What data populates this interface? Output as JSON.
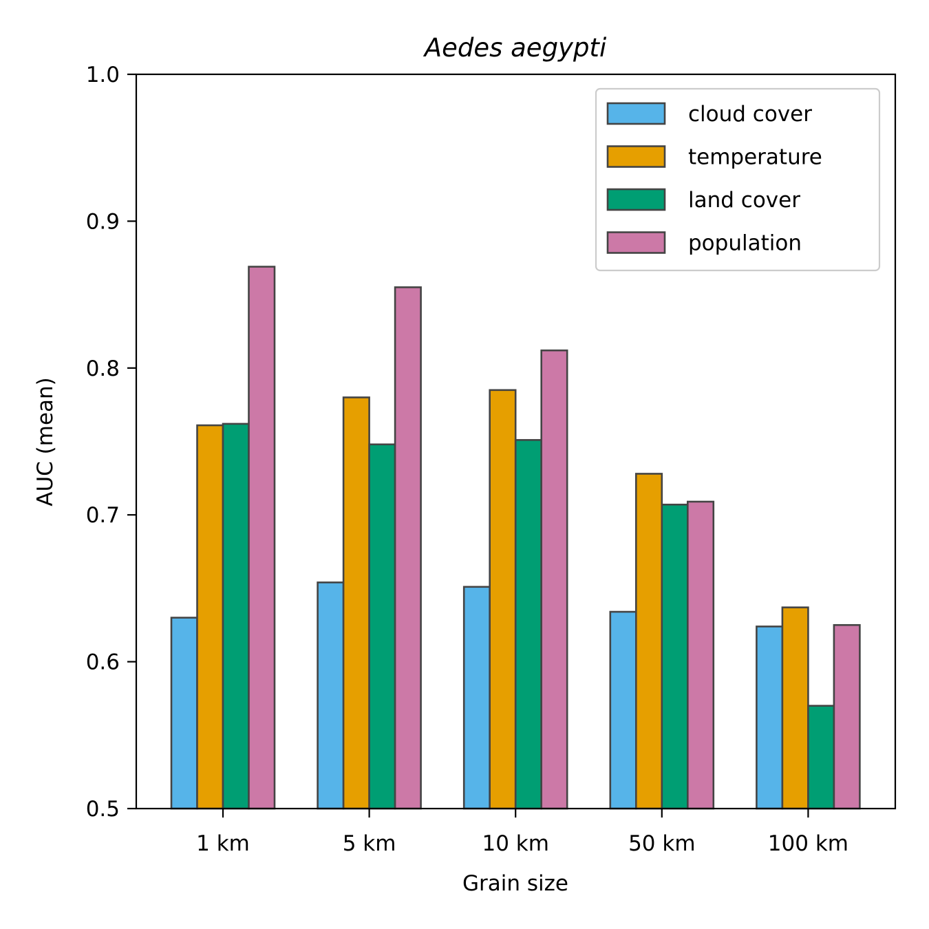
{
  "chart_data": {
    "type": "bar",
    "title": "Aedes aegypti",
    "xlabel": "Grain size",
    "ylabel": "AUC (mean)",
    "ylim": [
      0.5,
      1.0
    ],
    "yticks": [
      "0.5",
      "0.6",
      "0.7",
      "0.8",
      "0.9",
      "1.0"
    ],
    "categories": [
      "1 km",
      "5 km",
      "10 km",
      "50 km",
      "100 km"
    ],
    "series": [
      {
        "name": "cloud cover",
        "color": "#56B4E9",
        "values": [
          0.63,
          0.654,
          0.651,
          0.634,
          0.624
        ]
      },
      {
        "name": "temperature",
        "color": "#E69F00",
        "values": [
          0.761,
          0.78,
          0.785,
          0.728,
          0.637
        ]
      },
      {
        "name": "land cover",
        "color": "#009E73",
        "values": [
          0.762,
          0.748,
          0.751,
          0.707,
          0.57
        ]
      },
      {
        "name": "population",
        "color": "#CC79A7",
        "values": [
          0.869,
          0.855,
          0.812,
          0.709,
          0.625
        ]
      }
    ],
    "bar_edge_color": "#444444",
    "legend_position": "top-right",
    "grid": false
  }
}
